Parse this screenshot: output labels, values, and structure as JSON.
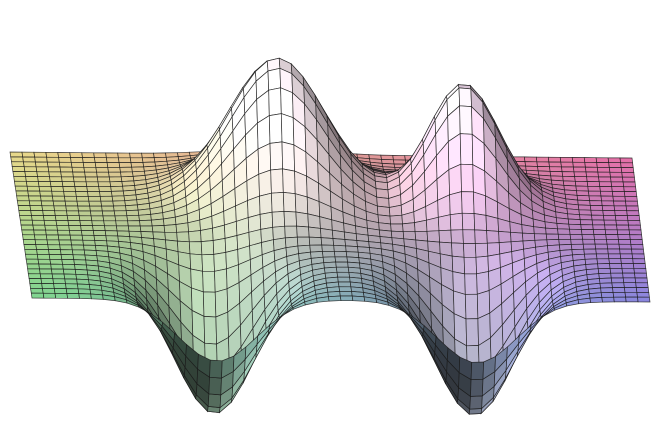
{
  "figure": {
    "kind": "3d-surface-plot",
    "background": "#ffffff",
    "wireframe_color": "#1a1a1a",
    "surface_colormap": {
      "back_left": "#e9d98a",
      "back_right": "#e56fa8",
      "front_left": "#7fd58f",
      "front_right": "#8a86e0"
    },
    "peaks": [
      {
        "id": "peak-left",
        "direction": "up",
        "amplitude": 1.0
      },
      {
        "id": "peak-right",
        "direction": "up",
        "amplitude": 0.85
      }
    ],
    "troughs": [
      {
        "id": "trough-left",
        "direction": "down",
        "amplitude": 1.0
      },
      {
        "id": "trough-right",
        "direction": "down",
        "amplitude": 1.0
      }
    ]
  }
}
